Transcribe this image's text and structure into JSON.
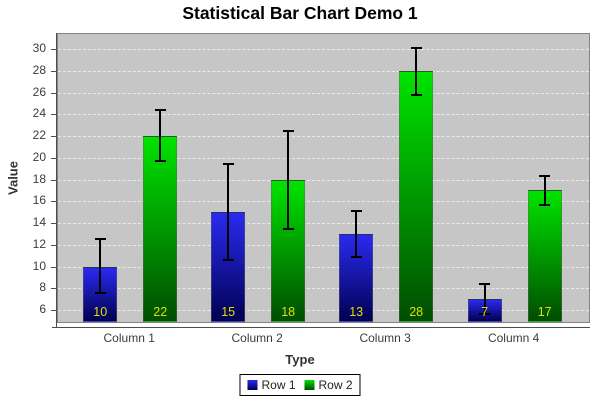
{
  "chart_data": {
    "type": "bar",
    "title": "Statistical Bar Chart Demo 1",
    "xlabel": "Type",
    "ylabel": "Value",
    "categories": [
      "Column 1",
      "Column 2",
      "Column 3",
      "Column 4"
    ],
    "series": [
      {
        "name": "Row 1",
        "values": [
          10,
          15,
          13,
          7
        ],
        "value_labels": [
          "10",
          "15",
          "13",
          "7"
        ],
        "error_low": [
          7.6,
          10.6,
          10.9,
          5.6
        ],
        "error_high": [
          12.5,
          19.4,
          15.1,
          8.4
        ],
        "color_top": "#2a2af0",
        "color_bottom": "#000052"
      },
      {
        "name": "Row 2",
        "values": [
          22,
          18,
          28,
          17
        ],
        "value_labels": [
          "22",
          "18",
          "28",
          "17"
        ],
        "error_low": [
          19.7,
          13.5,
          25.8,
          15.7
        ],
        "error_high": [
          24.4,
          22.5,
          30.1,
          18.3
        ],
        "color_top": "#00e400",
        "color_bottom": "#004d00"
      }
    ],
    "yticks": [
      6,
      8,
      10,
      12,
      14,
      16,
      18,
      20,
      22,
      24,
      26,
      28,
      30
    ],
    "ylim": [
      4.9,
      31.4
    ],
    "grid": "horizontal-dashed",
    "gridline_color": "#ebebeb",
    "plot_bg": "#c6c6c6",
    "error_bar_color": "#000000",
    "bar_label_color": "#e0e000",
    "legend_position": "bottom"
  }
}
